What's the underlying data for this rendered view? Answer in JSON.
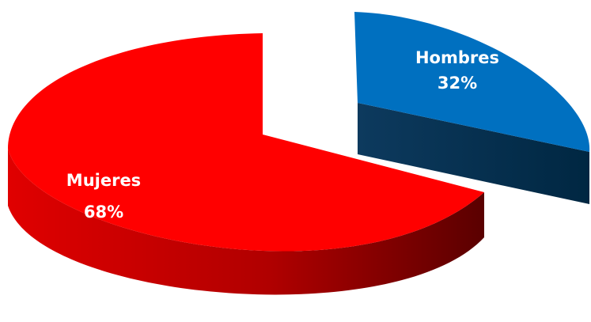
{
  "chart_data": {
    "type": "pie",
    "style": "3d-exploded",
    "slices": [
      {
        "label": "Mujeres",
        "value": 68,
        "value_label": "68%",
        "color": "#ff0000",
        "side_color": "#c00000"
      },
      {
        "label": "Hombres",
        "value": 32,
        "value_label": "32%",
        "color": "#0070c0",
        "side_color": "#002f50"
      }
    ],
    "legend": "none"
  }
}
